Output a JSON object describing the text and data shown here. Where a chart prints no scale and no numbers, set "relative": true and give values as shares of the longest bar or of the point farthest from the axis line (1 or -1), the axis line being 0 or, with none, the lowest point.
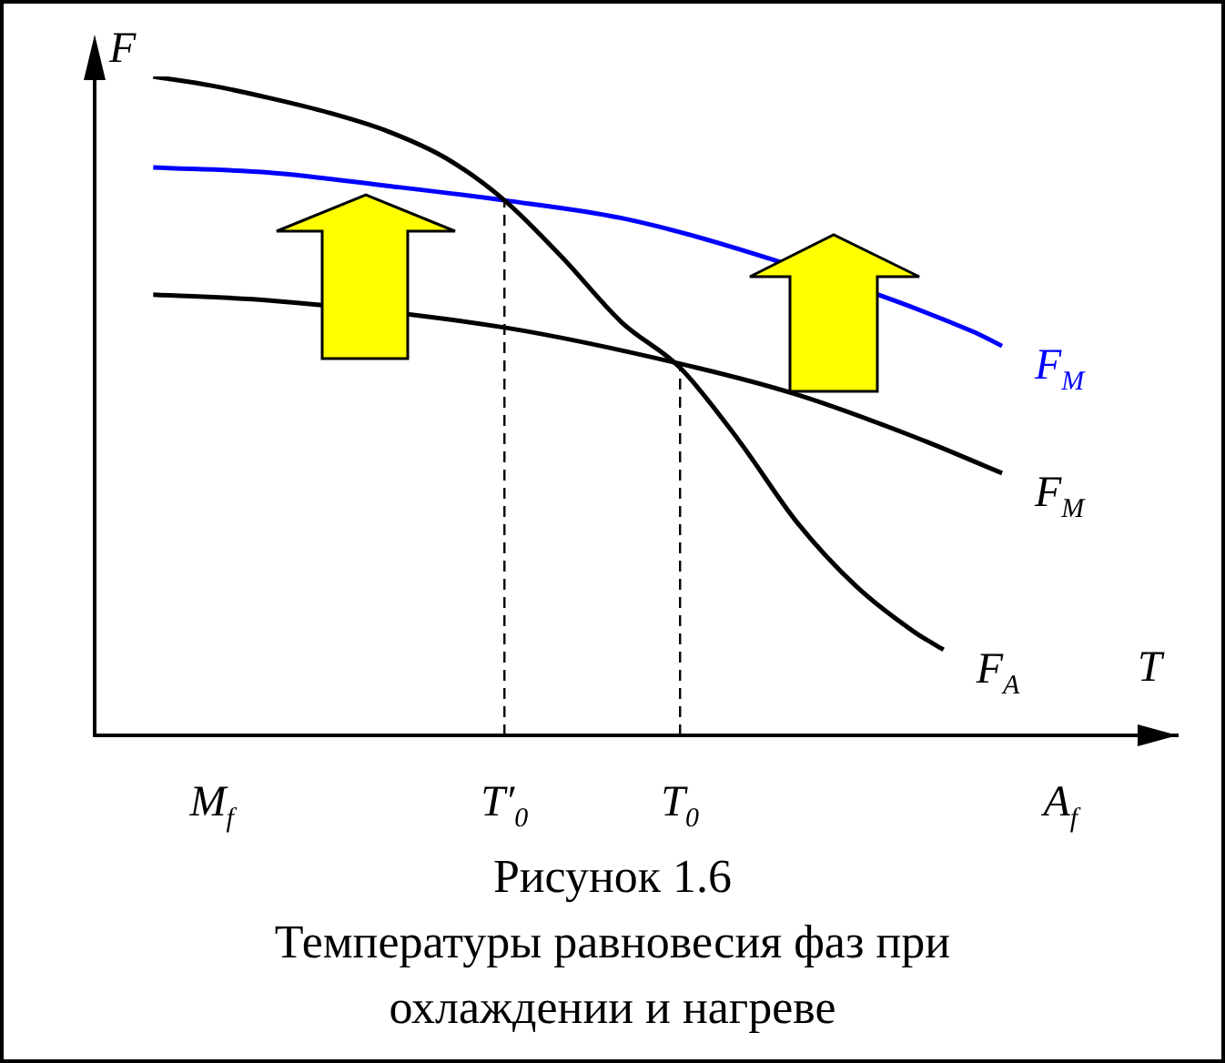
{
  "chart_data": {
    "type": "line",
    "relative": true,
    "title": "Рисунок 1.6",
    "subtitle": "Температуры равновесия фаз при охлаждении и нагреве",
    "xlabel": "T",
    "ylabel": "F",
    "grid": false,
    "legend": false,
    "marker": "none",
    "line_style": "solid",
    "categories": [
      null,
      null,
      null,
      null,
      "M$_{f}$",
      null,
      null,
      null,
      null,
      null,
      null,
      null,
      null,
      null,
      "T′$_{0}$",
      null,
      null,
      null,
      null,
      null,
      "T$_{0}$",
      null,
      null,
      null,
      null,
      null,
      null,
      null,
      null,
      null,
      null,
      null,
      null,
      "A$_{f}$",
      null,
      null,
      null,
      null
    ],
    "series": [
      {
        "name": "F$_{A}$",
        "color": "#000000",
        "values": [
          null,
          null,
          1.0,
          null,
          0.986,
          null,
          0.967,
          null,
          0.945,
          null,
          0.917,
          null,
          0.876,
          null,
          0.812,
          null,
          0.724,
          null,
          0.627,
          null,
          0.558,
          null,
          0.448,
          null,
          0.323,
          null,
          0.227,
          null,
          0.157,
          0.13,
          null,
          null,
          null,
          null,
          null,
          null,
          null,
          null
        ]
      },
      {
        "name": "F$_{M}$",
        "color": "#0000ff",
        "values": [
          null,
          null,
          0.862,
          null,
          null,
          null,
          0.854,
          null,
          null,
          null,
          0.834,
          null,
          null,
          null,
          0.812,
          null,
          null,
          null,
          0.785,
          null,
          null,
          null,
          0.738,
          null,
          null,
          null,
          null,
          null,
          null,
          null,
          0.613,
          0.591,
          null,
          null,
          null,
          null,
          null,
          null
        ]
      },
      {
        "name": "F$_{M}$",
        "color": "#000000",
        "values": [
          null,
          null,
          0.669,
          null,
          null,
          null,
          0.66,
          null,
          null,
          null,
          null,
          null,
          null,
          null,
          0.619,
          null,
          null,
          null,
          null,
          null,
          0.564,
          null,
          null,
          null,
          0.517,
          null,
          null,
          null,
          0.453,
          null,
          null,
          0.398,
          null,
          null,
          null,
          null,
          null,
          null
        ]
      }
    ],
    "ref_lines": [
      {
        "axis": "x",
        "value": "T′$_{0}$",
        "line_style": "dashed",
        "color": "#000000"
      },
      {
        "axis": "x",
        "value": "T$_{0}$",
        "line_style": "dashed",
        "color": "#000000"
      }
    ]
  }
}
